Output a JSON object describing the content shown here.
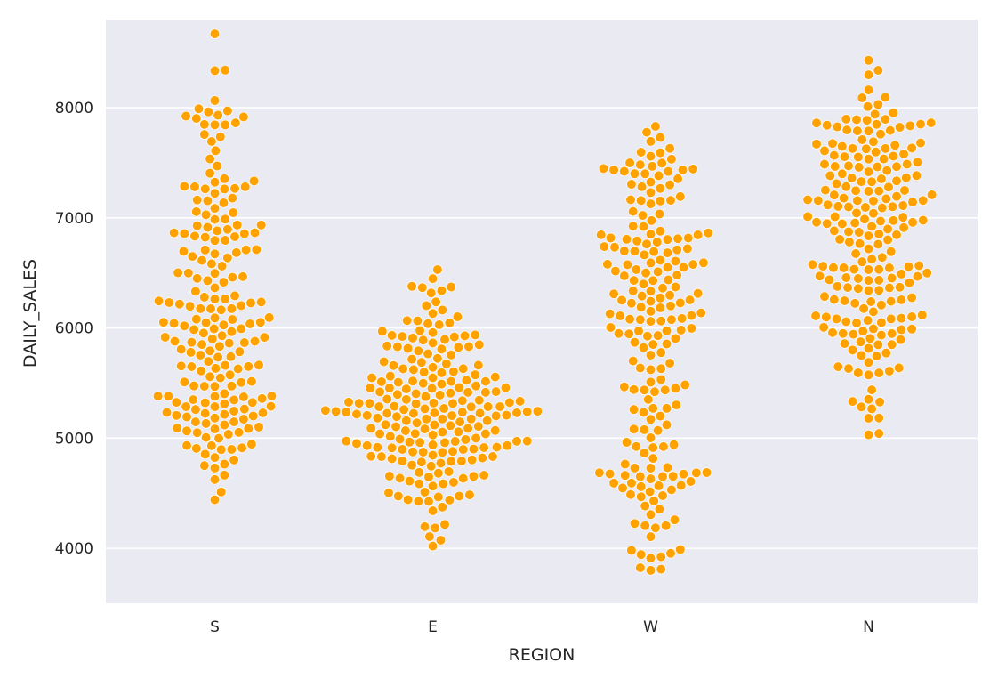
{
  "chart_data": {
    "type": "scatter",
    "subtype": "swarm",
    "xlabel": "REGION",
    "ylabel": "DAILY_SALES",
    "categories": [
      "S",
      "E",
      "W",
      "N"
    ],
    "ylim": [
      3500,
      8800
    ],
    "yticks": [
      4000,
      5000,
      6000,
      7000,
      8000
    ],
    "grid": true,
    "point_color": "#FFA200",
    "point_edge_color": "#ffffff",
    "background_color": "#EAEAF2",
    "series": [
      {
        "category": "S",
        "points_per_category": 205,
        "min": 4440,
        "max": 8670,
        "distribution": [
          [
            4440,
            0.05
          ],
          [
            4900,
            0.45
          ],
          [
            5100,
            0.85
          ],
          [
            5300,
            1.0
          ],
          [
            5600,
            0.95
          ],
          [
            5900,
            0.85
          ],
          [
            6200,
            1.0
          ],
          [
            6500,
            0.9
          ],
          [
            6800,
            0.55
          ],
          [
            7100,
            0.5
          ],
          [
            7400,
            0.45
          ],
          [
            7700,
            0.35
          ],
          [
            8000,
            0.3
          ],
          [
            8200,
            0.15
          ],
          [
            8670,
            0.05
          ]
        ]
      },
      {
        "category": "E",
        "points_per_category": 215,
        "min": 4020,
        "max": 6530,
        "distribution": [
          [
            4020,
            0.05
          ],
          [
            4300,
            0.3
          ],
          [
            4500,
            0.55
          ],
          [
            4750,
            0.85
          ],
          [
            5000,
            1.0
          ],
          [
            5200,
            1.0
          ],
          [
            5450,
            0.85
          ],
          [
            5700,
            0.65
          ],
          [
            5900,
            0.5
          ],
          [
            6100,
            0.25
          ],
          [
            6300,
            0.15
          ],
          [
            6530,
            0.05
          ]
        ]
      },
      {
        "category": "W",
        "points_per_category": 205,
        "min": 3800,
        "max": 7830,
        "distribution": [
          [
            3800,
            0.2
          ],
          [
            4100,
            0.55
          ],
          [
            4400,
            0.75
          ],
          [
            4700,
            1.0
          ],
          [
            5000,
            0.55
          ],
          [
            5300,
            0.65
          ],
          [
            5600,
            0.65
          ],
          [
            5900,
            0.65
          ],
          [
            6200,
            0.9
          ],
          [
            6500,
            0.65
          ],
          [
            6800,
            0.85
          ],
          [
            7100,
            0.65
          ],
          [
            7400,
            0.55
          ],
          [
            7650,
            0.25
          ],
          [
            7830,
            0.05
          ]
        ]
      },
      {
        "category": "N",
        "points_per_category": 215,
        "min": 5030,
        "max": 8430,
        "distribution": [
          [
            5030,
            0.05
          ],
          [
            5300,
            0.2
          ],
          [
            5600,
            0.45
          ],
          [
            5900,
            0.65
          ],
          [
            6200,
            0.95
          ],
          [
            6500,
            0.85
          ],
          [
            6800,
            1.0
          ],
          [
            7100,
            1.0
          ],
          [
            7400,
            1.0
          ],
          [
            7700,
            0.85
          ],
          [
            7900,
            0.65
          ],
          [
            8100,
            0.3
          ],
          [
            8430,
            0.05
          ]
        ]
      }
    ]
  }
}
